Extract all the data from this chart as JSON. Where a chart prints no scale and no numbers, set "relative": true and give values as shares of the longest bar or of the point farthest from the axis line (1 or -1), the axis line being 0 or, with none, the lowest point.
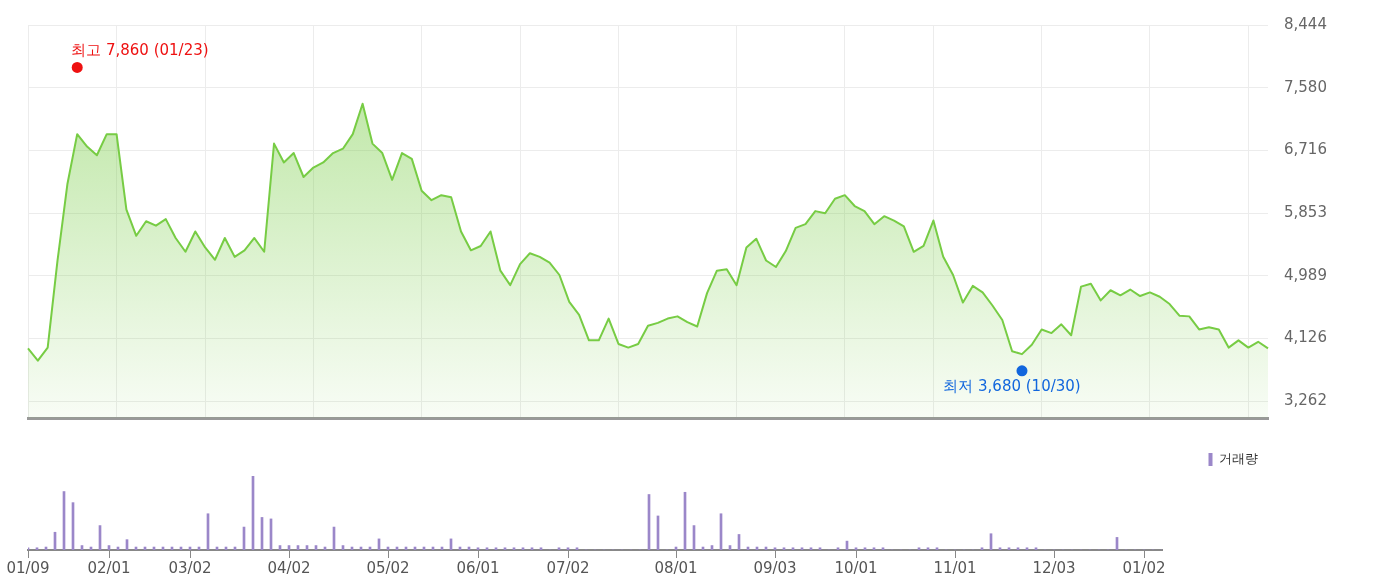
{
  "chart_data": [
    {
      "type": "area",
      "categories": [
        null,
        null,
        null,
        null,
        null,
        null,
        null,
        null,
        null,
        null,
        null,
        null,
        null,
        null,
        null,
        null,
        null,
        null,
        null,
        null,
        null,
        null,
        null,
        null,
        null,
        null,
        null,
        null,
        null,
        null,
        null,
        null,
        null,
        null,
        null,
        null,
        null,
        null,
        null,
        null,
        null,
        null,
        null,
        null,
        null,
        null,
        null,
        null,
        null,
        null,
        null,
        null,
        null,
        null,
        null,
        null,
        null,
        null,
        null,
        null,
        null,
        null,
        null,
        null,
        null,
        null,
        null,
        null,
        null,
        null,
        null,
        null,
        null,
        null,
        null,
        null,
        null,
        null,
        null,
        null,
        null,
        null,
        null,
        null,
        null,
        null,
        null,
        null,
        null,
        null,
        null,
        null,
        null,
        null,
        null,
        null,
        null,
        null,
        null,
        null,
        null,
        null,
        null,
        null,
        null,
        null,
        null,
        null,
        null,
        null,
        null,
        null,
        null,
        null,
        null,
        null,
        null,
        null,
        null,
        null,
        null,
        null,
        null,
        null,
        null,
        null,
        null
      ],
      "series": [
        {
          "color": "#77cc44",
          "values": [
            3990,
            3820,
            4000,
            5200,
            6250,
            6940,
            6770,
            6650,
            6940,
            6940,
            5900,
            5540,
            5740,
            5680,
            5770,
            5510,
            5320,
            5600,
            5380,
            5210,
            5510,
            5250,
            5340,
            5510,
            5320,
            6810,
            6550,
            6680,
            6350,
            6480,
            6550,
            6680,
            6740,
            6940,
            7360,
            6810,
            6680,
            6310,
            6680,
            6600,
            6160,
            6030,
            6100,
            6070,
            5600,
            5340,
            5400,
            5600,
            5060,
            4860,
            5150,
            5300,
            5250,
            5170,
            5000,
            4630,
            4450,
            4100,
            4100,
            4400,
            4050,
            4000,
            4050,
            4300,
            4340,
            4400,
            4430,
            4350,
            4290,
            4750,
            5060,
            5080,
            4860,
            5380,
            5500,
            5200,
            5110,
            5330,
            5650,
            5700,
            5880,
            5850,
            6050,
            6100,
            5950,
            5880,
            5700,
            5810,
            5750,
            5670,
            5320,
            5400,
            5750,
            5250,
            5000,
            4620,
            4850,
            4760,
            4580,
            4380,
            3950,
            3910,
            4040,
            4250,
            4200,
            4320,
            4170,
            4840,
            4880,
            4650,
            4790,
            4720,
            4800,
            4710,
            4760,
            4700,
            4600,
            4440,
            4430,
            4250,
            4280,
            4250,
            4000,
            4100,
            4000,
            4080,
            3990
          ]
        },
        {
          "type": "scatter",
          "marker": "circle",
          "colors": [
            null,
            null,
            null,
            null,
            null,
            "#ee1111",
            null,
            null,
            null,
            null,
            null,
            null,
            null,
            null,
            null,
            null,
            null,
            null,
            null,
            null,
            null,
            null,
            null,
            null,
            null,
            null,
            null,
            null,
            null,
            null,
            null,
            null,
            null,
            null,
            null,
            null,
            null,
            null,
            null,
            null,
            null,
            null,
            null,
            null,
            null,
            null,
            null,
            null,
            null,
            null,
            null,
            null,
            null,
            null,
            null,
            null,
            null,
            null,
            null,
            null,
            null,
            null,
            null,
            null,
            null,
            null,
            null,
            null,
            null,
            null,
            null,
            null,
            null,
            null,
            null,
            null,
            null,
            null,
            null,
            null,
            null,
            null,
            null,
            null,
            null,
            null,
            null,
            null,
            null,
            null,
            null,
            null,
            null,
            null,
            null,
            null,
            null,
            null,
            null,
            null,
            null,
            "#1166dd",
            null,
            null,
            null,
            null,
            null,
            null,
            null,
            null,
            null,
            null,
            null,
            null,
            null,
            null,
            null,
            null,
            null,
            null,
            null,
            null,
            null,
            null,
            null,
            null,
            null
          ],
          "values": [
            null,
            null,
            null,
            null,
            null,
            7860,
            null,
            null,
            null,
            null,
            null,
            null,
            null,
            null,
            null,
            null,
            null,
            null,
            null,
            null,
            null,
            null,
            null,
            null,
            null,
            null,
            null,
            null,
            null,
            null,
            null,
            null,
            null,
            null,
            null,
            null,
            null,
            null,
            null,
            null,
            null,
            null,
            null,
            null,
            null,
            null,
            null,
            null,
            null,
            null,
            null,
            null,
            null,
            null,
            null,
            null,
            null,
            null,
            null,
            null,
            null,
            null,
            null,
            null,
            null,
            null,
            null,
            null,
            null,
            null,
            null,
            null,
            null,
            null,
            null,
            null,
            null,
            null,
            null,
            null,
            null,
            null,
            null,
            null,
            null,
            null,
            null,
            null,
            null,
            null,
            null,
            null,
            null,
            null,
            null,
            null,
            null,
            null,
            null,
            null,
            null,
            3680,
            null,
            null,
            null,
            null,
            null,
            null,
            null,
            null,
            null,
            null,
            null,
            null,
            null,
            null,
            null,
            null,
            null,
            null,
            null,
            null,
            null,
            null,
            null,
            null,
            null
          ]
        }
      ],
      "ylim": [
        3030,
        8444
      ],
      "yticks": [
        {
          "value": 3262,
          "label": "3,262"
        },
        {
          "value": 4126,
          "label": "4,126"
        },
        {
          "value": 4989,
          "label": "4,989"
        },
        {
          "value": 5853,
          "label": "5,853"
        },
        {
          "value": 6716,
          "label": "6,716"
        },
        {
          "value": 7580,
          "label": "7,580"
        },
        {
          "value": 8444,
          "label": "8,444"
        }
      ],
      "grid": true,
      "tick_labels": "y",
      "annotations": [
        "최고 7,860 (01/23)",
        "최저 3,680 (10/30)"
      ]
    },
    {
      "type": "bar",
      "relative": true,
      "categories": [
        "01/09",
        null,
        null,
        null,
        null,
        null,
        null,
        null,
        null,
        "02/01",
        null,
        null,
        null,
        null,
        null,
        null,
        null,
        null,
        "03/02",
        null,
        null,
        null,
        null,
        null,
        null,
        null,
        null,
        null,
        null,
        "04/02",
        null,
        null,
        null,
        null,
        null,
        null,
        null,
        null,
        null,
        null,
        "05/02",
        null,
        null,
        null,
        null,
        null,
        null,
        null,
        null,
        null,
        "06/01",
        null,
        null,
        null,
        null,
        null,
        null,
        null,
        null,
        null,
        "07/02",
        null,
        null,
        null,
        null,
        null,
        null,
        null,
        null,
        null,
        null,
        null,
        "08/01",
        null,
        null,
        null,
        null,
        null,
        null,
        null,
        null,
        null,
        null,
        "09/03",
        null,
        null,
        null,
        null,
        null,
        null,
        null,
        null,
        "10/01",
        null,
        null,
        null,
        null,
        null,
        null,
        null,
        null,
        null,
        null,
        "11/01",
        null,
        null,
        null,
        null,
        null,
        null,
        null,
        null,
        null,
        null,
        "12/03",
        null,
        null,
        null,
        null,
        null,
        null,
        null,
        null,
        null,
        "01/02",
        null,
        null
      ],
      "series": [
        {
          "name": "거래량",
          "color": "#9b87c9",
          "values": [
            0.03,
            0.03,
            0.04,
            0.24,
            0.79,
            0.64,
            0.06,
            0.04,
            0.33,
            0.06,
            0.04,
            0.14,
            0.04,
            0.04,
            0.04,
            0.04,
            0.04,
            0.04,
            0.04,
            0.04,
            0.49,
            0.04,
            0.04,
            0.04,
            0.31,
            1,
            0.44,
            0.42,
            0.06,
            0.06,
            0.06,
            0.06,
            0.06,
            0.04,
            0.31,
            0.06,
            0.04,
            0.04,
            0.04,
            0.15,
            0.04,
            0.04,
            0.04,
            0.04,
            0.04,
            0.04,
            0.04,
            0.15,
            0.04,
            0.04,
            0.03,
            0.03,
            0.03,
            0.03,
            0.03,
            0.03,
            0.03,
            0.03,
            0,
            0.03,
            0.03,
            0.03,
            0,
            0,
            0,
            0,
            0,
            0,
            0,
            0.75,
            0.46,
            0,
            0.04,
            0.78,
            0.33,
            0.04,
            0.06,
            0.49,
            0.06,
            0.21,
            0.04,
            0.04,
            0.04,
            0.03,
            0.03,
            0.03,
            0.03,
            0.03,
            0.03,
            0,
            0.03,
            0.12,
            0.03,
            0.03,
            0.03,
            0.03,
            0,
            0,
            0,
            0.03,
            0.03,
            0.03,
            0,
            0,
            0,
            0,
            0.03,
            0.22,
            0.03,
            0.03,
            0.03,
            0.03,
            0.03,
            0,
            0,
            0,
            0,
            0,
            0,
            0,
            0,
            0.17,
            0,
            0,
            0,
            0,
            0
          ]
        }
      ],
      "legend": "top right",
      "grid": false,
      "tick_labels": "x"
    }
  ]
}
